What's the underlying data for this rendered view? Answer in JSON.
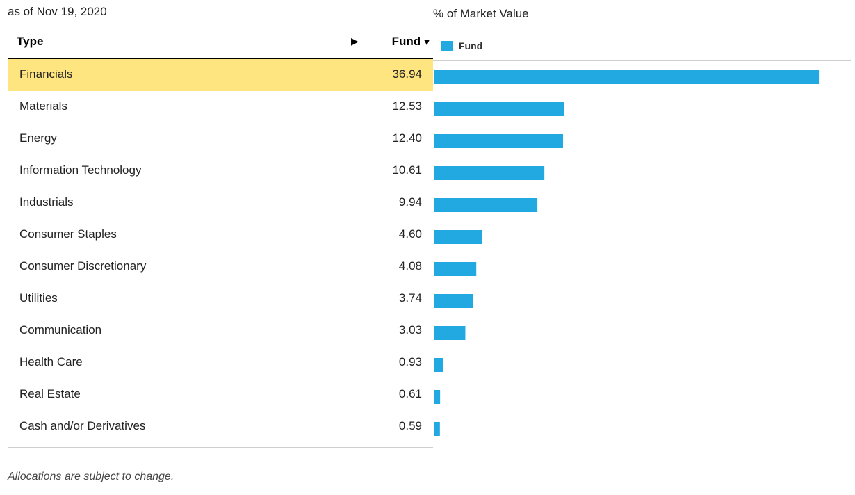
{
  "as_of": "as of Nov 19, 2020",
  "table": {
    "col_type": "Type",
    "col_fund": "Fund",
    "sort_arrow_icon": "play-arrow-icon",
    "sort_caret_icon": "caret-down-icon"
  },
  "chart_data": {
    "type": "bar",
    "title": "% of Market Value",
    "legend": "Fund",
    "legend_position": "top-left",
    "color": "#22a9e2",
    "highlight_color": "#ffe57f",
    "highlighted_index": 0,
    "categories": [
      "Financials",
      "Materials",
      "Energy",
      "Information Technology",
      "Industrials",
      "Consumer Staples",
      "Consumer Discretionary",
      "Utilities",
      "Communication",
      "Health Care",
      "Real Estate",
      "Cash and/or Derivatives"
    ],
    "value_labels": [
      "36.94",
      "12.53",
      "12.40",
      "10.61",
      "9.94",
      "4.60",
      "4.08",
      "3.74",
      "3.03",
      "0.93",
      "0.61",
      "0.59"
    ],
    "series": [
      {
        "name": "Fund",
        "values": [
          36.94,
          12.53,
          12.4,
          10.61,
          9.94,
          4.6,
          4.08,
          3.74,
          3.03,
          0.93,
          0.61,
          0.59
        ]
      }
    ],
    "xlim": [
      0,
      40
    ]
  },
  "footnote": "Allocations are subject to change."
}
